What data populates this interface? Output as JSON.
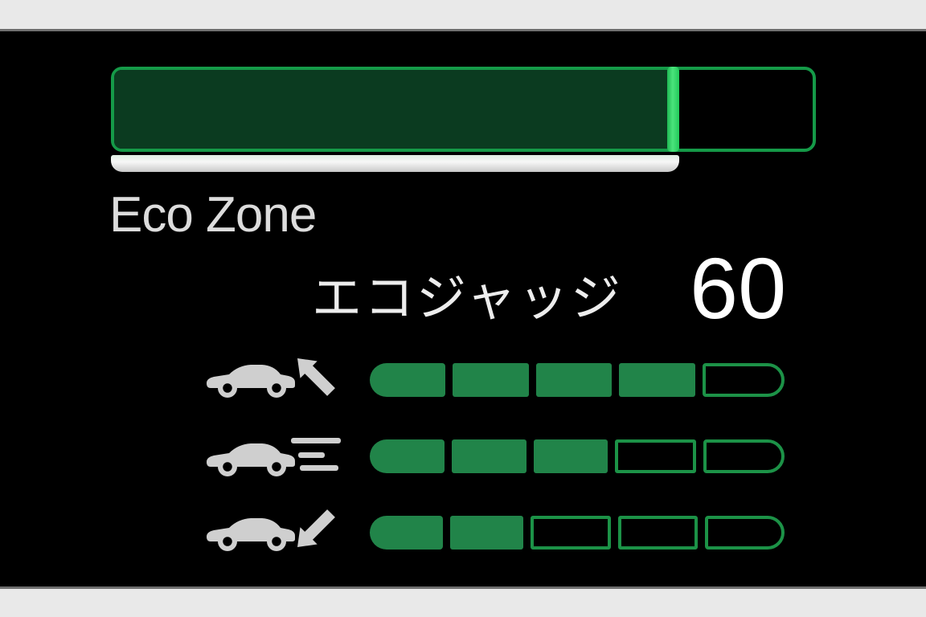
{
  "eco_zone": {
    "label": "Eco Zone",
    "fill_percent": 80
  },
  "eco_judge": {
    "label": "エコジャッジ",
    "score": "60"
  },
  "gauges": [
    {
      "name": "accelerating",
      "icon": "car-arrow-up-left-icon",
      "filled": 4,
      "total": 5
    },
    {
      "name": "cruising",
      "icon": "car-speed-lines-icon",
      "filled": 3,
      "total": 5
    },
    {
      "name": "decelerating",
      "icon": "car-arrow-down-left-icon",
      "filled": 2,
      "total": 5
    }
  ],
  "colors": {
    "background": "#000000",
    "letterbox": "#e9e9e9",
    "bar_border": "#159a48",
    "bar_fill": "#0b3b20",
    "bar_edge_bright": "#4ae47c",
    "segment_fill": "#218449",
    "segment_border": "#1c9247",
    "underline": "#e6e6e6",
    "text": "#ededed",
    "car_icon": "#cfcfcf"
  }
}
